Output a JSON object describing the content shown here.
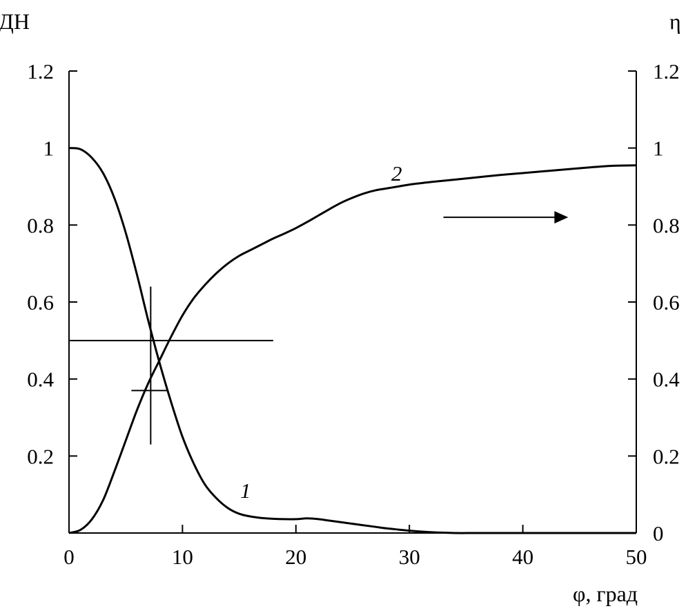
{
  "chart_data": {
    "type": "line",
    "x_label": "φ, град",
    "y_left_label": "ДН",
    "y_right_label": "η",
    "xlim": [
      0,
      50
    ],
    "ylim": [
      0,
      1.2
    ],
    "x_ticks": [
      "0",
      "10",
      "20",
      "30",
      "40",
      "50"
    ],
    "y_left_ticks": [
      "1.2",
      "1",
      "0.8",
      "0.6",
      "0.4",
      "0.2"
    ],
    "y_right_ticks": [
      "1.2",
      "1",
      "0.8",
      "0.6",
      "0.4",
      "0.2",
      "0"
    ],
    "grid": false,
    "series": [
      {
        "name": "1",
        "axis": "left",
        "x": [
          0,
          1,
          2,
          3,
          4,
          5,
          6,
          7,
          8,
          9,
          10,
          11,
          12,
          13,
          14,
          15,
          16,
          17,
          18,
          19,
          20,
          21,
          22,
          23,
          24,
          25,
          26,
          27,
          28,
          29,
          30,
          32,
          34,
          36,
          40,
          45,
          50
        ],
        "y": [
          1.0,
          0.997,
          0.975,
          0.935,
          0.87,
          0.78,
          0.67,
          0.55,
          0.44,
          0.34,
          0.25,
          0.18,
          0.125,
          0.09,
          0.065,
          0.05,
          0.043,
          0.039,
          0.037,
          0.036,
          0.036,
          0.038,
          0.036,
          0.032,
          0.028,
          0.024,
          0.02,
          0.016,
          0.012,
          0.009,
          0.006,
          0.002,
          0.0,
          0.0,
          0.0,
          0.0,
          0.0
        ]
      },
      {
        "name": "2",
        "axis": "right",
        "x": [
          0,
          1,
          2,
          3,
          4,
          5,
          6,
          7,
          8,
          9,
          10,
          11,
          12,
          13,
          14,
          15,
          16,
          17,
          18,
          19,
          20,
          21,
          22,
          23,
          24,
          25,
          26,
          27,
          28,
          29,
          30,
          32,
          34,
          36,
          38,
          40,
          42,
          44,
          46,
          48,
          50
        ],
        "y": [
          0.0,
          0.008,
          0.035,
          0.085,
          0.16,
          0.24,
          0.32,
          0.39,
          0.45,
          0.51,
          0.565,
          0.61,
          0.645,
          0.675,
          0.7,
          0.72,
          0.735,
          0.75,
          0.765,
          0.778,
          0.792,
          0.808,
          0.825,
          0.842,
          0.858,
          0.871,
          0.882,
          0.89,
          0.895,
          0.9,
          0.905,
          0.912,
          0.918,
          0.924,
          0.93,
          0.935,
          0.94,
          0.945,
          0.95,
          0.954,
          0.955
        ]
      }
    ],
    "annotations": [
      {
        "type": "arrow",
        "direction": "right",
        "refers_to_axis": "right",
        "x_start": 33,
        "x_end": 44,
        "y": 0.82
      },
      {
        "type": "hline",
        "x_start": 0,
        "x_end": 18,
        "y": 0.5
      },
      {
        "type": "vline",
        "x": 7.2,
        "y_start": 0.23,
        "y_end": 0.64
      },
      {
        "type": "hline",
        "x_start": 5.5,
        "x_end": 8.6,
        "y": 0.37
      }
    ]
  }
}
